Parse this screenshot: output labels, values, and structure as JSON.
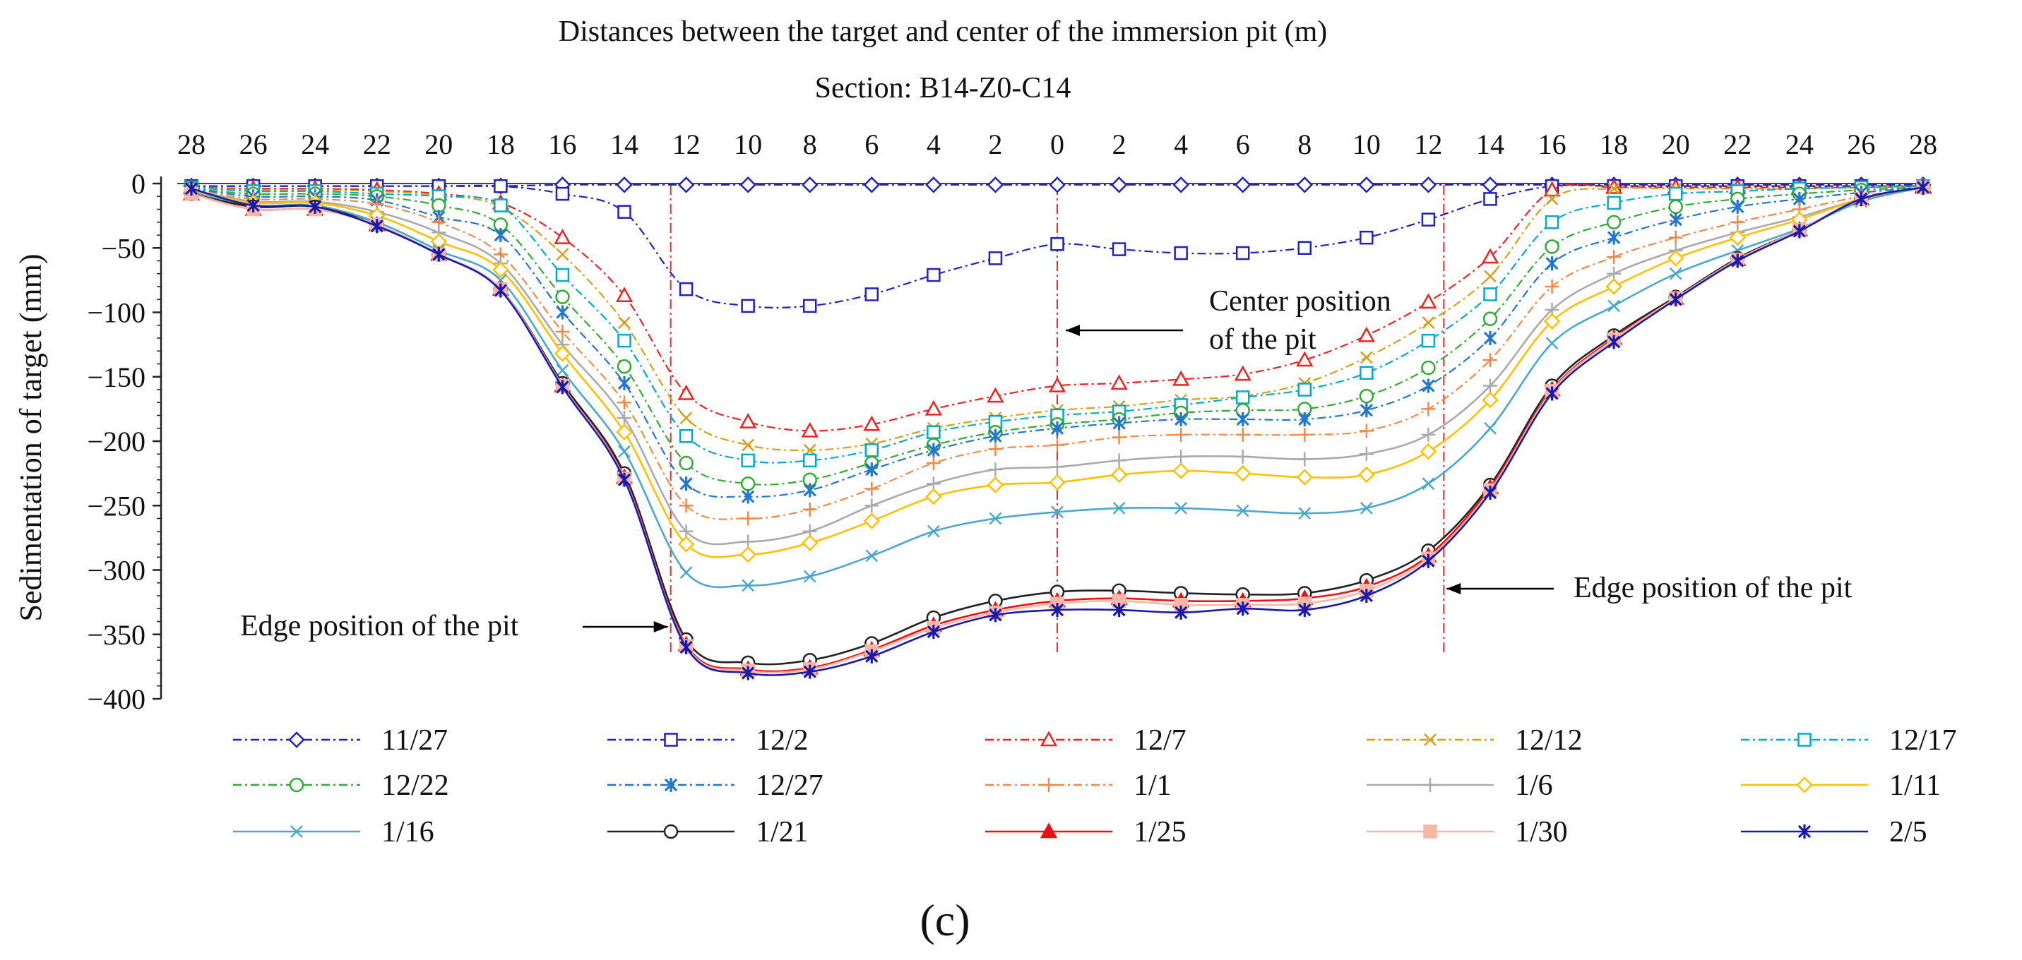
{
  "chart_data": {
    "type": "line",
    "title": "Distances between the target and center of the immersion pit (m)",
    "subtitle": "Section: B14-Z0-C14",
    "ylabel": "Sedimentation of target  (mm)",
    "xlabel": "",
    "panel_label": "(c)",
    "x_tick_labels": [
      "28",
      "26",
      "24",
      "22",
      "20",
      "18",
      "16",
      "14",
      "12",
      "10",
      "8",
      "6",
      "4",
      "2",
      "0",
      "2",
      "4",
      "6",
      "8",
      "10",
      "12",
      "14",
      "16",
      "18",
      "20",
      "22",
      "24",
      "26",
      "28"
    ],
    "x_positions": [
      -28,
      -26,
      -24,
      -22,
      -20,
      -18,
      -16,
      -14,
      -12,
      -10,
      -8,
      -6,
      -4,
      -2,
      0,
      2,
      4,
      6,
      8,
      10,
      12,
      14,
      16,
      18,
      20,
      22,
      24,
      26,
      28
    ],
    "xlim": [
      -28,
      28
    ],
    "ylim": [
      -400,
      0
    ],
    "y_ticks": [
      0,
      -50,
      -100,
      -150,
      -200,
      -250,
      -300,
      -350,
      -400
    ],
    "grid": false,
    "legend_position": "bottom",
    "annotations": [
      {
        "text_lines": [
          "Center position",
          "of the pit"
        ],
        "points_to_x": 0
      },
      {
        "text_lines": [
          "Edge position of the pit"
        ],
        "points_to_x": -12.5
      },
      {
        "text_lines": [
          "Edge position of the pit"
        ],
        "points_to_x": 12.5
      }
    ],
    "reference_lines_x": [
      -12.5,
      0,
      12.5
    ],
    "series": [
      {
        "name": "11/27",
        "color": "#2222bb",
        "marker": "diamond",
        "dash": "dashdot",
        "values": [
          -2,
          -2,
          -2,
          -2,
          -2,
          -2,
          -1,
          -1,
          -1,
          -1,
          -1,
          -1,
          -1,
          -1,
          -1,
          -1,
          -1,
          -1,
          -1,
          -1,
          -1,
          -1,
          -1,
          -1,
          -1,
          -1,
          -1,
          -1,
          -1
        ]
      },
      {
        "name": "12/2",
        "color": "#2222bb",
        "marker": "square",
        "dash": "dashdot",
        "values": [
          -2,
          -2,
          -2,
          -2,
          -2,
          -2,
          -8,
          -22,
          -82,
          -95,
          -95,
          -86,
          -71,
          -58,
          -47,
          -51,
          -54,
          -54,
          -50,
          -42,
          -28,
          -12,
          -2,
          -2,
          -2,
          -2,
          -2,
          -2,
          -2
        ]
      },
      {
        "name": "12/7",
        "color": "#ee2222",
        "marker": "triangle",
        "dash": "dashdot",
        "values": [
          -3,
          -4,
          -4,
          -5,
          -8,
          -15,
          -42,
          -87,
          -163,
          -185,
          -192,
          -187,
          -175,
          -165,
          -157,
          -155,
          -152,
          -148,
          -137,
          -118,
          -92,
          -57,
          -5,
          -3,
          -3,
          -3,
          -3,
          -3,
          -2
        ]
      },
      {
        "name": "12/12",
        "color": "#d4a017",
        "marker": "x",
        "dash": "dashdot",
        "values": [
          -3,
          -5,
          -5,
          -6,
          -9,
          -18,
          -55,
          -108,
          -182,
          -203,
          -207,
          -202,
          -190,
          -182,
          -176,
          -173,
          -168,
          -165,
          -155,
          -135,
          -108,
          -72,
          -12,
          -4,
          -4,
          -4,
          -4,
          -3,
          -2
        ]
      },
      {
        "name": "12/17",
        "color": "#00aacc",
        "marker": "square",
        "dash": "dashdot",
        "values": [
          -3,
          -6,
          -6,
          -8,
          -10,
          -17,
          -71,
          -122,
          -196,
          -215,
          -215,
          -207,
          -193,
          -185,
          -180,
          -177,
          -172,
          -166,
          -160,
          -147,
          -122,
          -86,
          -30,
          -15,
          -8,
          -6,
          -4,
          -3,
          -2
        ]
      },
      {
        "name": "12/22",
        "color": "#33aa33",
        "marker": "circle",
        "dash": "dashdot",
        "values": [
          -4,
          -8,
          -8,
          -10,
          -17,
          -32,
          -88,
          -142,
          -217,
          -233,
          -230,
          -217,
          -203,
          -193,
          -187,
          -183,
          -178,
          -176,
          -175,
          -165,
          -143,
          -105,
          -49,
          -30,
          -18,
          -12,
          -8,
          -5,
          -3
        ]
      },
      {
        "name": "12/27",
        "color": "#2277cc",
        "marker": "asterisk",
        "dash": "dashdot",
        "values": [
          -4,
          -10,
          -10,
          -13,
          -26,
          -40,
          -100,
          -155,
          -233,
          -243,
          -238,
          -222,
          -207,
          -196,
          -190,
          -186,
          -183,
          -183,
          -183,
          -176,
          -157,
          -120,
          -62,
          -42,
          -28,
          -18,
          -12,
          -7,
          -3
        ]
      },
      {
        "name": "1/1",
        "color": "#f08a4b",
        "marker": "plus",
        "dash": "dashdot",
        "values": [
          -5,
          -12,
          -12,
          -16,
          -30,
          -55,
          -115,
          -170,
          -250,
          -260,
          -253,
          -237,
          -217,
          -206,
          -203,
          -197,
          -195,
          -195,
          -195,
          -192,
          -175,
          -137,
          -80,
          -57,
          -42,
          -30,
          -20,
          -10,
          -3
        ]
      },
      {
        "name": "1/6",
        "color": "#aaaaaa",
        "marker": "plus",
        "dash": "solid",
        "values": [
          -5,
          -14,
          -14,
          -22,
          -38,
          -62,
          -125,
          -182,
          -270,
          -278,
          -270,
          -250,
          -233,
          -222,
          -220,
          -215,
          -212,
          -212,
          -214,
          -210,
          -195,
          -157,
          -98,
          -70,
          -52,
          -38,
          -26,
          -12,
          -3
        ]
      },
      {
        "name": "1/11",
        "color": "#ffc000",
        "marker": "diamond",
        "dash": "solid",
        "values": [
          -6,
          -15,
          -15,
          -25,
          -45,
          -67,
          -132,
          -193,
          -280,
          -288,
          -279,
          -262,
          -243,
          -234,
          -232,
          -226,
          -223,
          -225,
          -228,
          -226,
          -208,
          -168,
          -107,
          -80,
          -58,
          -42,
          -28,
          -12,
          -3
        ]
      },
      {
        "name": "1/16",
        "color": "#4aa8cc",
        "marker": "x",
        "dash": "solid",
        "values": [
          -7,
          -17,
          -17,
          -30,
          -52,
          -75,
          -145,
          -208,
          -302,
          -312,
          -305,
          -289,
          -270,
          -260,
          -255,
          -252,
          -252,
          -254,
          -256,
          -252,
          -233,
          -190,
          -124,
          -95,
          -70,
          -52,
          -35,
          -14,
          -3
        ]
      },
      {
        "name": "1/21",
        "color": "#222222",
        "marker": "circle",
        "dash": "solid",
        "values": [
          -8,
          -18,
          -18,
          -32,
          -55,
          -82,
          -155,
          -225,
          -354,
          -372,
          -370,
          -357,
          -337,
          -324,
          -317,
          -316,
          -318,
          -319,
          -318,
          -308,
          -285,
          -234,
          -157,
          -118,
          -88,
          -58,
          -36,
          -12,
          -3
        ]
      },
      {
        "name": "1/25",
        "color": "#ee1111",
        "marker": "triangle-filled",
        "dash": "solid",
        "values": [
          -8,
          -20,
          -20,
          -32,
          -55,
          -82,
          -157,
          -228,
          -358,
          -377,
          -376,
          -362,
          -343,
          -331,
          -324,
          -322,
          -324,
          -324,
          -322,
          -313,
          -289,
          -236,
          -160,
          -120,
          -89,
          -59,
          -36,
          -12,
          -3
        ]
      },
      {
        "name": "1/30",
        "color": "#f7b6a6",
        "marker": "square-filled",
        "dash": "solid",
        "values": [
          -8,
          -20,
          -20,
          -32,
          -55,
          -82,
          -157,
          -229,
          -359,
          -378,
          -377,
          -363,
          -345,
          -333,
          -326,
          -324,
          -327,
          -327,
          -326,
          -316,
          -291,
          -238,
          -161,
          -121,
          -89,
          -59,
          -36,
          -12,
          -3
        ]
      },
      {
        "name": "2/5",
        "color": "#1a1aaa",
        "marker": "asterisk",
        "dash": "solid",
        "values": [
          -4,
          -17,
          -18,
          -33,
          -55,
          -83,
          -158,
          -230,
          -360,
          -380,
          -379,
          -367,
          -348,
          -335,
          -331,
          -331,
          -333,
          -330,
          -331,
          -320,
          -293,
          -240,
          -163,
          -123,
          -90,
          -60,
          -37,
          -12,
          -3
        ]
      }
    ]
  }
}
